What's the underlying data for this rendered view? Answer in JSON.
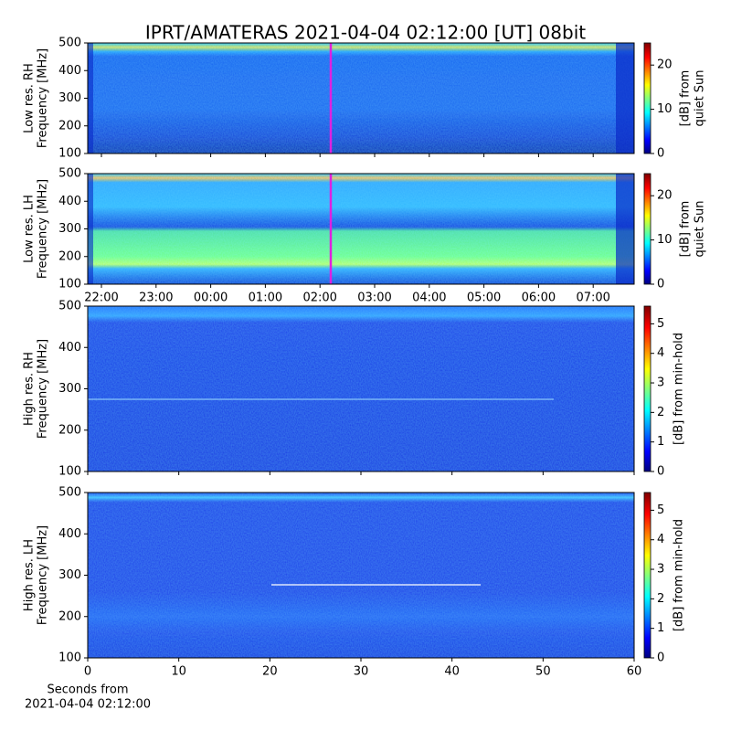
{
  "title": "IPRT/AMATERAS 2021-04-04 02:12:00 [UT]   08bit",
  "chart_data": [
    {
      "type": "heatmap",
      "ylabel": [
        "Low res. RH",
        "Frequency [MHz]"
      ],
      "ylim": [
        100,
        500
      ],
      "yticks": [
        100,
        200,
        300,
        400,
        500
      ],
      "colorbar": {
        "label": [
          "[dB] from",
          "quiet Sun"
        ],
        "lim": [
          0,
          25
        ],
        "ticks": [
          0,
          10,
          20
        ]
      }
    },
    {
      "type": "heatmap",
      "ylabel": [
        "Low res. LH",
        "Frequency [MHz]"
      ],
      "ylim": [
        100,
        500
      ],
      "yticks": [
        100,
        200,
        300,
        400,
        500
      ],
      "xticks": [
        "22:00",
        "23:00",
        "00:00",
        "01:00",
        "02:00",
        "03:00",
        "04:00",
        "05:00",
        "06:00",
        "07:00"
      ],
      "colorbar": {
        "label": [
          "[dB] from",
          "quiet Sun"
        ],
        "lim": [
          0,
          25
        ],
        "ticks": [
          0,
          10,
          20
        ]
      }
    },
    {
      "type": "heatmap",
      "ylabel": [
        "High res. RH",
        "Frequency [MHz]"
      ],
      "ylim": [
        100,
        500
      ],
      "yticks": [
        100,
        200,
        300,
        400,
        500
      ],
      "colorbar": {
        "label": [
          "[dB] from min-hold"
        ],
        "lim": [
          0,
          5.6
        ],
        "ticks": [
          0,
          1,
          2,
          3,
          4,
          5
        ]
      }
    },
    {
      "type": "heatmap",
      "ylabel": [
        "High res. LH",
        "Frequency [MHz]"
      ],
      "ylim": [
        100,
        500
      ],
      "yticks": [
        100,
        200,
        300,
        400,
        500
      ],
      "xlabel": [
        "Seconds from",
        "2021-04-04 02:12:00"
      ],
      "xlim": [
        0,
        60
      ],
      "xticks": [
        0,
        10,
        20,
        30,
        40,
        50,
        60
      ],
      "colorbar": {
        "label": [
          "[dB] from min-hold"
        ],
        "lim": [
          0,
          5.6
        ],
        "ticks": [
          0,
          1,
          2,
          3,
          4,
          5
        ]
      }
    }
  ]
}
